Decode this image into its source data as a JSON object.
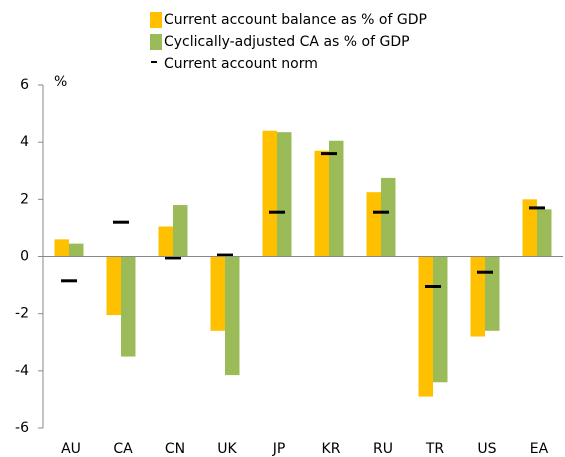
{
  "chart_data": {
    "type": "bar",
    "y_unit": "%",
    "categories": [
      "AU",
      "CA",
      "CN",
      "UK",
      "JP",
      "KR",
      "RU",
      "TR",
      "US",
      "EA"
    ],
    "series": [
      {
        "name": "Current account balance as % of GDP",
        "color": "#ffc000",
        "style": "bar",
        "values": [
          0.6,
          -2.05,
          1.05,
          -2.6,
          4.4,
          3.7,
          2.25,
          -4.9,
          -2.8,
          2.0
        ]
      },
      {
        "name": "Cyclically-adjusted CA as % of GDP",
        "color": "#9bbb59",
        "style": "bar",
        "values": [
          0.45,
          -3.5,
          1.8,
          -4.15,
          4.35,
          4.05,
          2.75,
          -4.4,
          -2.6,
          1.65
        ]
      },
      {
        "name": "Current account norm",
        "color": "#000000",
        "style": "dash",
        "values": [
          -0.85,
          1.2,
          -0.05,
          0.05,
          1.55,
          3.6,
          1.55,
          -1.05,
          -0.55,
          1.7
        ]
      }
    ],
    "ylim": [
      -6,
      6
    ],
    "yticks": [
      -6,
      -4,
      -2,
      0,
      2,
      4,
      6
    ]
  }
}
